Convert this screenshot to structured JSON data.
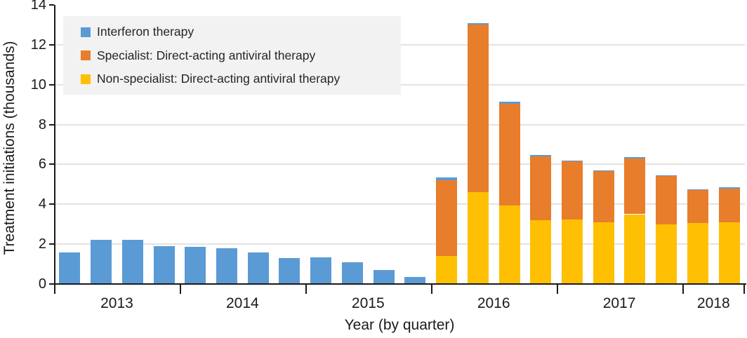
{
  "chart_data": {
    "type": "bar",
    "stacked": true,
    "title": "",
    "xlabel": "Year (by quarter)",
    "ylabel": "Treatment initiations (thousands)",
    "ylim": [
      0,
      14
    ],
    "yticks": [
      0,
      2,
      4,
      6,
      8,
      10,
      12,
      14
    ],
    "grid": "horizontal-light-gray",
    "legend_position": "top-left",
    "x_unit": "quarter",
    "years": [
      {
        "label": "2013",
        "quarters": 4
      },
      {
        "label": "2014",
        "quarters": 4
      },
      {
        "label": "2015",
        "quarters": 4
      },
      {
        "label": "2016",
        "quarters": 4
      },
      {
        "label": "2017",
        "quarters": 4
      },
      {
        "label": "2018",
        "quarters": 2
      }
    ],
    "categories": [
      "2013 Q1",
      "2013 Q2",
      "2013 Q3",
      "2013 Q4",
      "2014 Q1",
      "2014 Q2",
      "2014 Q3",
      "2014 Q4",
      "2015 Q1",
      "2015 Q2",
      "2015 Q3",
      "2015 Q4",
      "2016 Q1",
      "2016 Q2",
      "2016 Q3",
      "2016 Q4",
      "2017 Q1",
      "2017 Q2",
      "2017 Q3",
      "2017 Q4",
      "2018 Q1",
      "2018 Q2"
    ],
    "series": [
      {
        "name": "Interferon therapy",
        "color": "#5b9bd5",
        "stack_layer": "top",
        "values": [
          1.6,
          2.2,
          2.2,
          1.9,
          1.85,
          1.8,
          1.6,
          1.3,
          1.35,
          1.1,
          0.7,
          0.35,
          0.15,
          0.1,
          0.1,
          0.07,
          0.05,
          0.05,
          0.05,
          0.05,
          0.05,
          0.05
        ]
      },
      {
        "name": "Specialist: Direct-acting antiviral therapy",
        "color": "#e87d2b",
        "stack_layer": "middle",
        "values": [
          0,
          0,
          0,
          0,
          0,
          0,
          0,
          0,
          0,
          0,
          0,
          0,
          3.8,
          8.4,
          5.1,
          3.2,
          2.9,
          2.55,
          2.8,
          2.4,
          1.65,
          1.7
        ]
      },
      {
        "name": "Non-specialist: Direct-acting antiviral therapy",
        "color": "#ffc004",
        "stack_layer": "bottom",
        "values": [
          0,
          0,
          0,
          0,
          0,
          0,
          0,
          0,
          0,
          0,
          0,
          0,
          1.4,
          4.6,
          3.95,
          3.2,
          3.25,
          3.1,
          3.5,
          3.0,
          3.05,
          3.1
        ]
      }
    ]
  },
  "style": {
    "gridline_color": "#e3e3e3",
    "axis_color": "#1a1a1a",
    "legend_bg": "#f2f2f2",
    "background": "#ffffff"
  }
}
